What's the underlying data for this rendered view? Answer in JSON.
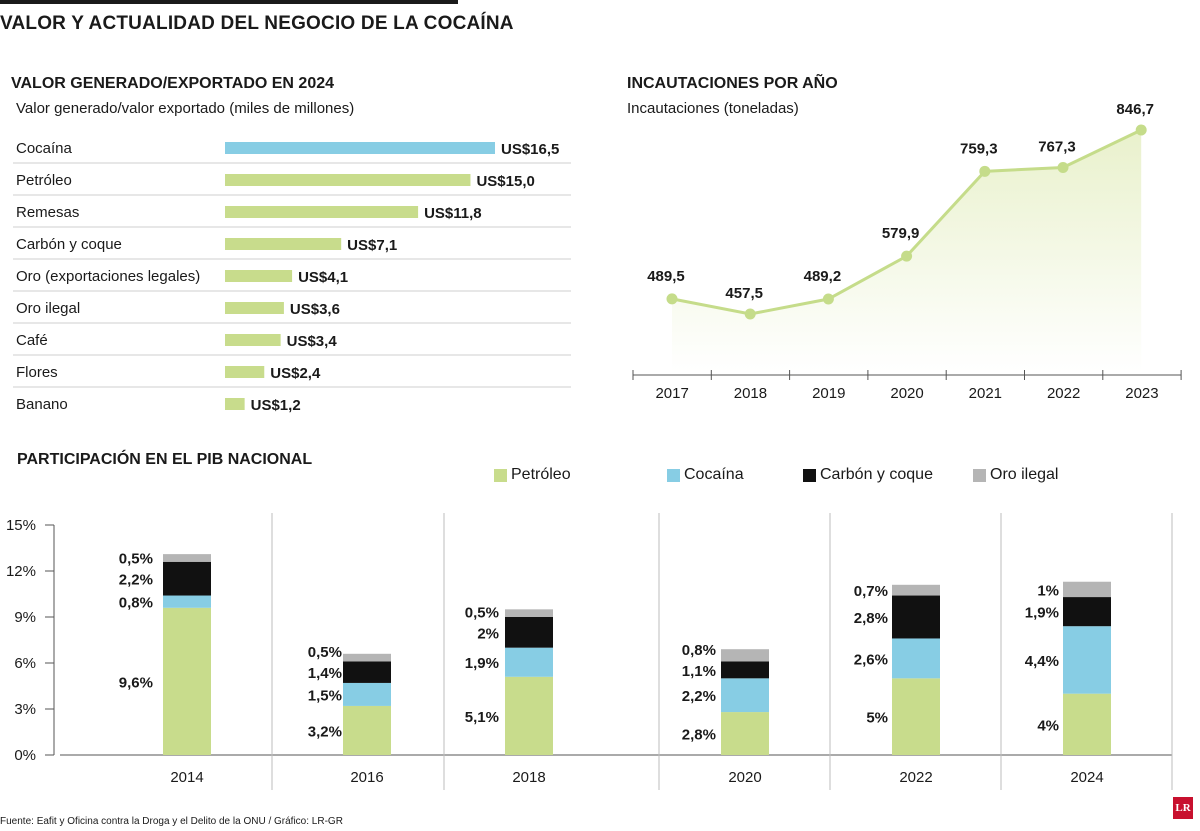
{
  "title": "VALOR Y ACTUALIDAD DEL NEGOCIO DE LA COCAÍNA",
  "colors": {
    "green": "#c8dc8c",
    "blue": "#87cde4",
    "black": "#111111",
    "gray": "#b5b5b5",
    "area": "#eef4d8"
  },
  "sections": {
    "bars_title": "VALOR GENERADO/EXPORTADO EN 2024",
    "bars_subtitle": "Valor generado/valor exportado (miles de millones)",
    "line_title": "INCAUTACIONES POR AÑO",
    "line_subtitle": "Incautaciones (toneladas)",
    "stack_title": "PARTICIPACIÓN EN EL PIB NACIONAL"
  },
  "legend": [
    {
      "label": "Petróleo",
      "color": "#c8dc8c"
    },
    {
      "label": "Cocaína",
      "color": "#87cde4"
    },
    {
      "label": "Carbón y coque",
      "color": "#111111"
    },
    {
      "label": "Oro ilegal",
      "color": "#b5b5b5"
    }
  ],
  "footer": "Fuente: Eafit y Oficina contra la Droga y el Delito de la ONU / Gráfico: LR-GR",
  "logo": "LR",
  "chart_data": [
    {
      "type": "bar",
      "orientation": "horizontal",
      "title": "VALOR GENERADO/EXPORTADO EN 2024",
      "subtitle": "Valor generado/valor exportado (miles de millones)",
      "categories": [
        "Cocaína",
        "Petróleo",
        "Remesas",
        "Carbón y coque",
        "Oro (exportaciones legales)",
        "Oro ilegal",
        "Café",
        "Flores",
        "Banano"
      ],
      "values": [
        16.5,
        15.0,
        11.8,
        7.1,
        4.1,
        3.6,
        3.4,
        2.4,
        1.2
      ],
      "labels": [
        "US$16,5",
        "US$15,0",
        "US$11,8",
        "US$7,1",
        "US$4,1",
        "US$3,6",
        "US$3,4",
        "US$2,4",
        "US$1,2"
      ],
      "highlight": "Cocaína"
    },
    {
      "type": "area",
      "title": "INCAUTACIONES POR AÑO",
      "subtitle": "Incautaciones (toneladas)",
      "x": [
        "2017",
        "2018",
        "2019",
        "2020",
        "2021",
        "2022",
        "2023"
      ],
      "values": [
        489.5,
        457.5,
        489.2,
        579.9,
        759.3,
        767.3,
        846.7
      ],
      "labels": [
        "489,5",
        "457,5",
        "489,2",
        "579,9",
        "759,3",
        "767,3",
        "846,7"
      ]
    },
    {
      "type": "bar",
      "stacked": true,
      "title": "PARTICIPACIÓN EN EL PIB NACIONAL",
      "categories": [
        "2014",
        "2016",
        "2018",
        "2020",
        "2022",
        "2024"
      ],
      "ylim": [
        0,
        15
      ],
      "yticks": [
        "0%",
        "3%",
        "6%",
        "9%",
        "12%",
        "15%"
      ],
      "series": [
        {
          "name": "Petróleo",
          "values": [
            9.6,
            3.2,
            5.1,
            2.8,
            5,
            4
          ],
          "labels": [
            "9,6%",
            "3,2%",
            "5,1%",
            "2,8%",
            "5%",
            "4%"
          ]
        },
        {
          "name": "Cocaína",
          "values": [
            0.8,
            1.5,
            1.9,
            2.2,
            2.6,
            4.4
          ],
          "labels": [
            "0,8%",
            "1,5%",
            "1,9%",
            "2,2%",
            "2,6%",
            "4,4%"
          ]
        },
        {
          "name": "Carbón y coque",
          "values": [
            2.2,
            1.4,
            2,
            1.1,
            2.8,
            1.9
          ],
          "labels": [
            "2,2%",
            "1,4%",
            "2%",
            "1,1%",
            "2,8%",
            "1,9%"
          ]
        },
        {
          "name": "Oro ilegal",
          "values": [
            0.5,
            0.5,
            0.5,
            0.8,
            0.7,
            1
          ],
          "labels": [
            "0,5%",
            "0,5%",
            "0,5%",
            "0,8%",
            "0,7%",
            "1%"
          ]
        }
      ]
    }
  ]
}
